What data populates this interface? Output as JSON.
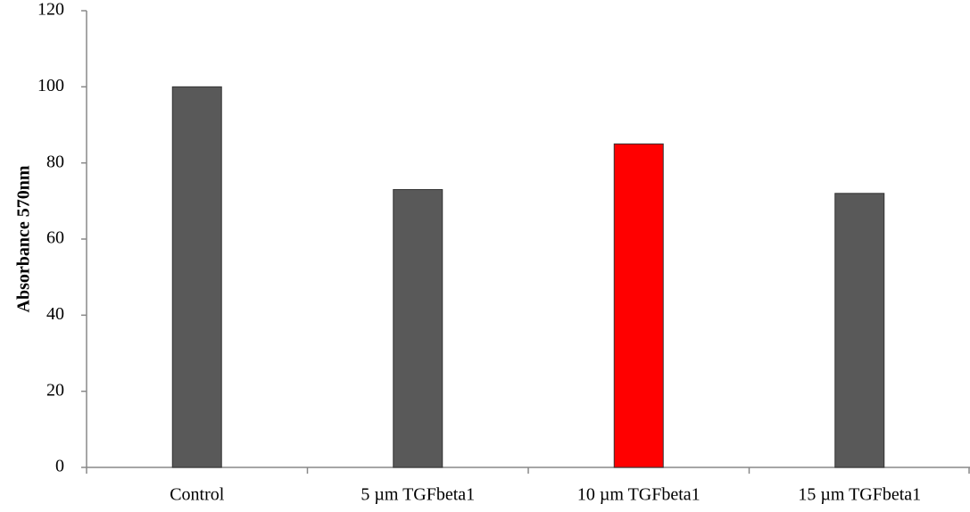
{
  "chart_data": {
    "type": "bar",
    "y_label": "Absorbance 570nm",
    "categories": [
      "Control",
      "5 µm TGFbeta1",
      "10 µm TGFbeta1",
      "15 µm TGFbeta1"
    ],
    "values": [
      100,
      73,
      85,
      72
    ],
    "colors": [
      "#595959",
      "#595959",
      "#ff0000",
      "#595959"
    ],
    "ylim": [
      0,
      120
    ],
    "yticks": [
      0,
      20,
      40,
      60,
      80,
      100,
      120
    ],
    "grid": false
  }
}
